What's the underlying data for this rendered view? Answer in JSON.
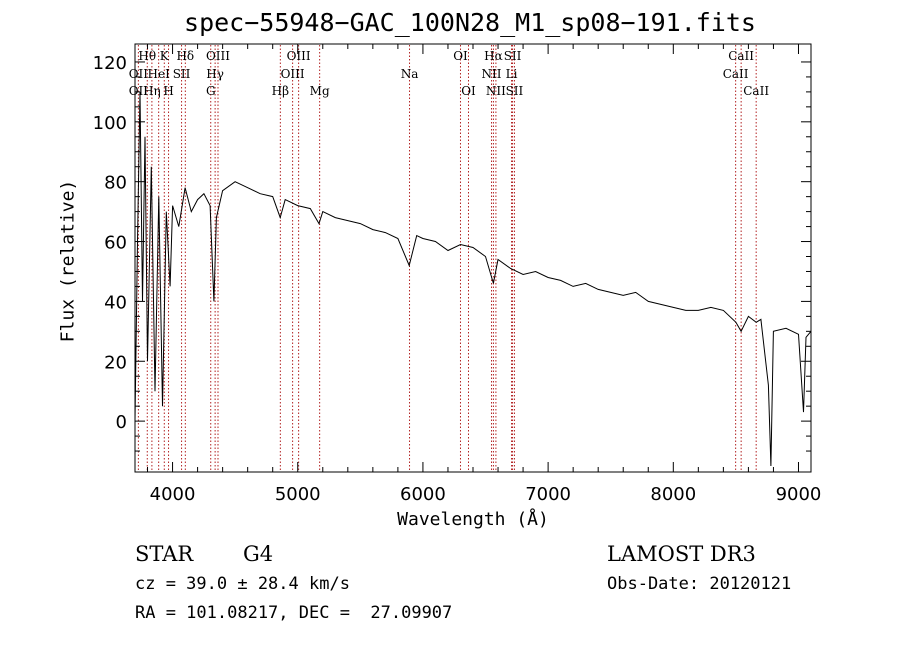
{
  "chart_data": {
    "type": "line",
    "title": "spec−55948−GAC_100N28_M1_sp08−191.fits",
    "xlabel": "Wavelength (Å)",
    "ylabel": "Flux (relative)",
    "xlim": [
      3700,
      9100
    ],
    "ylim": [
      -17,
      126
    ],
    "x_ticks": [
      4000,
      5000,
      6000,
      7000,
      8000,
      9000
    ],
    "y_ticks": [
      0,
      20,
      40,
      60,
      80,
      100,
      120
    ],
    "spectrum": {
      "name": "flux",
      "x": [
        3700,
        3720,
        3740,
        3760,
        3780,
        3800,
        3830,
        3860,
        3890,
        3920,
        3950,
        3980,
        4000,
        4050,
        4100,
        4150,
        4200,
        4250,
        4300,
        4330,
        4350,
        4400,
        4500,
        4600,
        4700,
        4800,
        4860,
        4900,
        5000,
        5100,
        5170,
        5200,
        5300,
        5400,
        5500,
        5600,
        5700,
        5800,
        5890,
        5950,
        6000,
        6100,
        6200,
        6300,
        6400,
        6500,
        6563,
        6600,
        6700,
        6800,
        6900,
        7000,
        7100,
        7200,
        7300,
        7400,
        7500,
        7600,
        7700,
        7800,
        7900,
        8000,
        8100,
        8200,
        8300,
        8400,
        8500,
        8542,
        8600,
        8662,
        8700,
        8760,
        8780,
        8800,
        8900,
        9000,
        9040,
        9060,
        9100
      ],
      "y": [
        0,
        60,
        110,
        40,
        95,
        20,
        85,
        10,
        75,
        5,
        70,
        45,
        72,
        65,
        78,
        70,
        74,
        76,
        72,
        40,
        68,
        77,
        80,
        78,
        76,
        75,
        68,
        74,
        72,
        71,
        66,
        70,
        68,
        67,
        66,
        64,
        63,
        61,
        52,
        62,
        61,
        60,
        57,
        59,
        58,
        55,
        46,
        54,
        51,
        49,
        50,
        48,
        47,
        45,
        46,
        44,
        43,
        42,
        43,
        40,
        39,
        38,
        37,
        37,
        38,
        37,
        33,
        30,
        35,
        33,
        34,
        12,
        -15,
        30,
        31,
        29,
        3,
        28,
        30
      ]
    },
    "lines": [
      {
        "label": "Hθ",
        "x": 3798,
        "row": 0
      },
      {
        "label": "K",
        "x": 3934,
        "row": 0
      },
      {
        "label": "Hδ",
        "x": 4102,
        "row": 0
      },
      {
        "label": "OIII",
        "x": 4363,
        "row": 0
      },
      {
        "label": "OIII",
        "x": 5007,
        "row": 0
      },
      {
        "label": "OI",
        "x": 6300,
        "row": 0
      },
      {
        "label": "Hα",
        "x": 6563,
        "row": 0
      },
      {
        "label": "SII",
        "x": 6716,
        "row": 0
      },
      {
        "label": "CaII",
        "x": 8542,
        "row": 0
      },
      {
        "label": "OII",
        "x": 3727,
        "row": 1
      },
      {
        "label": "HeI",
        "x": 3889,
        "row": 1
      },
      {
        "label": "SII",
        "x": 4072,
        "row": 1
      },
      {
        "label": "Hγ",
        "x": 4340,
        "row": 1
      },
      {
        "label": "OIII",
        "x": 4959,
        "row": 1
      },
      {
        "label": "Na",
        "x": 5893,
        "row": 1
      },
      {
        "label": "NII",
        "x": 6548,
        "row": 1
      },
      {
        "label": "Li",
        "x": 6708,
        "row": 1
      },
      {
        "label": "CaII",
        "x": 8498,
        "row": 1
      },
      {
        "label": "OII",
        "x": 3727,
        "row": 2
      },
      {
        "label": "Hη",
        "x": 3835,
        "row": 2
      },
      {
        "label": "H",
        "x": 3968,
        "row": 2
      },
      {
        "label": "G",
        "x": 4305,
        "row": 2
      },
      {
        "label": "Hβ",
        "x": 4861,
        "row": 2
      },
      {
        "label": "Mg",
        "x": 5175,
        "row": 2
      },
      {
        "label": "OI",
        "x": 6364,
        "row": 2
      },
      {
        "label": "NII",
        "x": 6583,
        "row": 2
      },
      {
        "label": "SII",
        "x": 6731,
        "row": 2
      },
      {
        "label": "CaII",
        "x": 8662,
        "row": 2
      }
    ]
  },
  "info": {
    "class": "STAR",
    "subclass": "G4",
    "survey": "LAMOST DR3",
    "cz": "cz = 39.0 ± 28.4 km/s",
    "obs_date": "Obs-Date: 20120121",
    "coords": "RA = 101.08217, DEC =  27.09907"
  },
  "colors": {
    "spectrum": "#000000",
    "line_markers": "#b22222",
    "axes": "#000000"
  }
}
